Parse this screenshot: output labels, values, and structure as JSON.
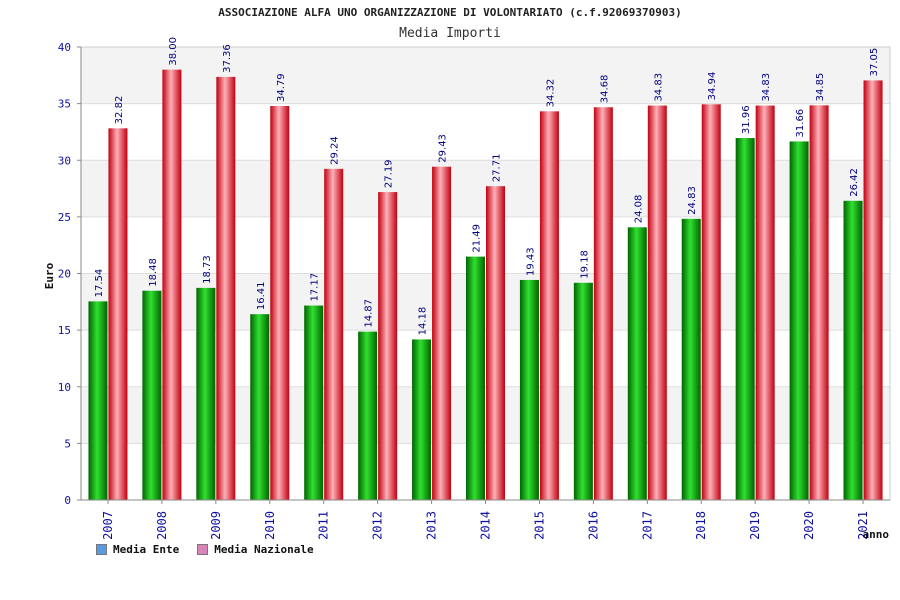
{
  "chart_data": {
    "type": "bar",
    "title": "ASSOCIAZIONE ALFA UNO ORGANIZZAZIONE DI VOLONTARIATO (c.f.92069370903)",
    "subtitle": "Media Importi",
    "xlabel": "anno",
    "ylabel": "Euro",
    "ylim": [
      0,
      40
    ],
    "yticks": [
      0,
      5,
      10,
      15,
      20,
      25,
      30,
      35,
      40
    ],
    "grid": true,
    "legend_position": "bottom-left",
    "categories": [
      "2007",
      "2008",
      "2009",
      "2010",
      "2011",
      "2012",
      "2013",
      "2014",
      "2015",
      "2016",
      "2017",
      "2018",
      "2019",
      "2020",
      "2021"
    ],
    "series": [
      {
        "name": "Media Ente",
        "color": "#00a000",
        "legend_color": "#5a9be0",
        "values": [
          17.54,
          18.48,
          18.73,
          16.41,
          17.17,
          14.87,
          14.18,
          21.49,
          19.43,
          19.18,
          24.08,
          24.83,
          31.96,
          31.66,
          26.42
        ],
        "labels": [
          "17.54",
          "18.48",
          "18.73",
          "16.41",
          "17.17",
          "14.87",
          "14.18",
          "21.49",
          "19.43",
          "19.18",
          "24.08",
          "24.83",
          "31.96",
          "31.66",
          "26.42"
        ]
      },
      {
        "name": "Media Nazionale",
        "color": "#e8101a",
        "legend_color": "#d884b8",
        "values": [
          32.82,
          38.0,
          37.36,
          34.79,
          29.24,
          27.19,
          29.43,
          27.71,
          34.32,
          34.68,
          34.83,
          34.94,
          34.83,
          34.85,
          37.05
        ],
        "labels": [
          "32.82",
          "38.00",
          "37.36",
          "34.79",
          "29.24",
          "27.19",
          "29.43",
          "27.71",
          "34.32",
          "34.68",
          "34.83",
          "34.94",
          "34.83",
          "34.85",
          "37.05"
        ]
      }
    ]
  }
}
